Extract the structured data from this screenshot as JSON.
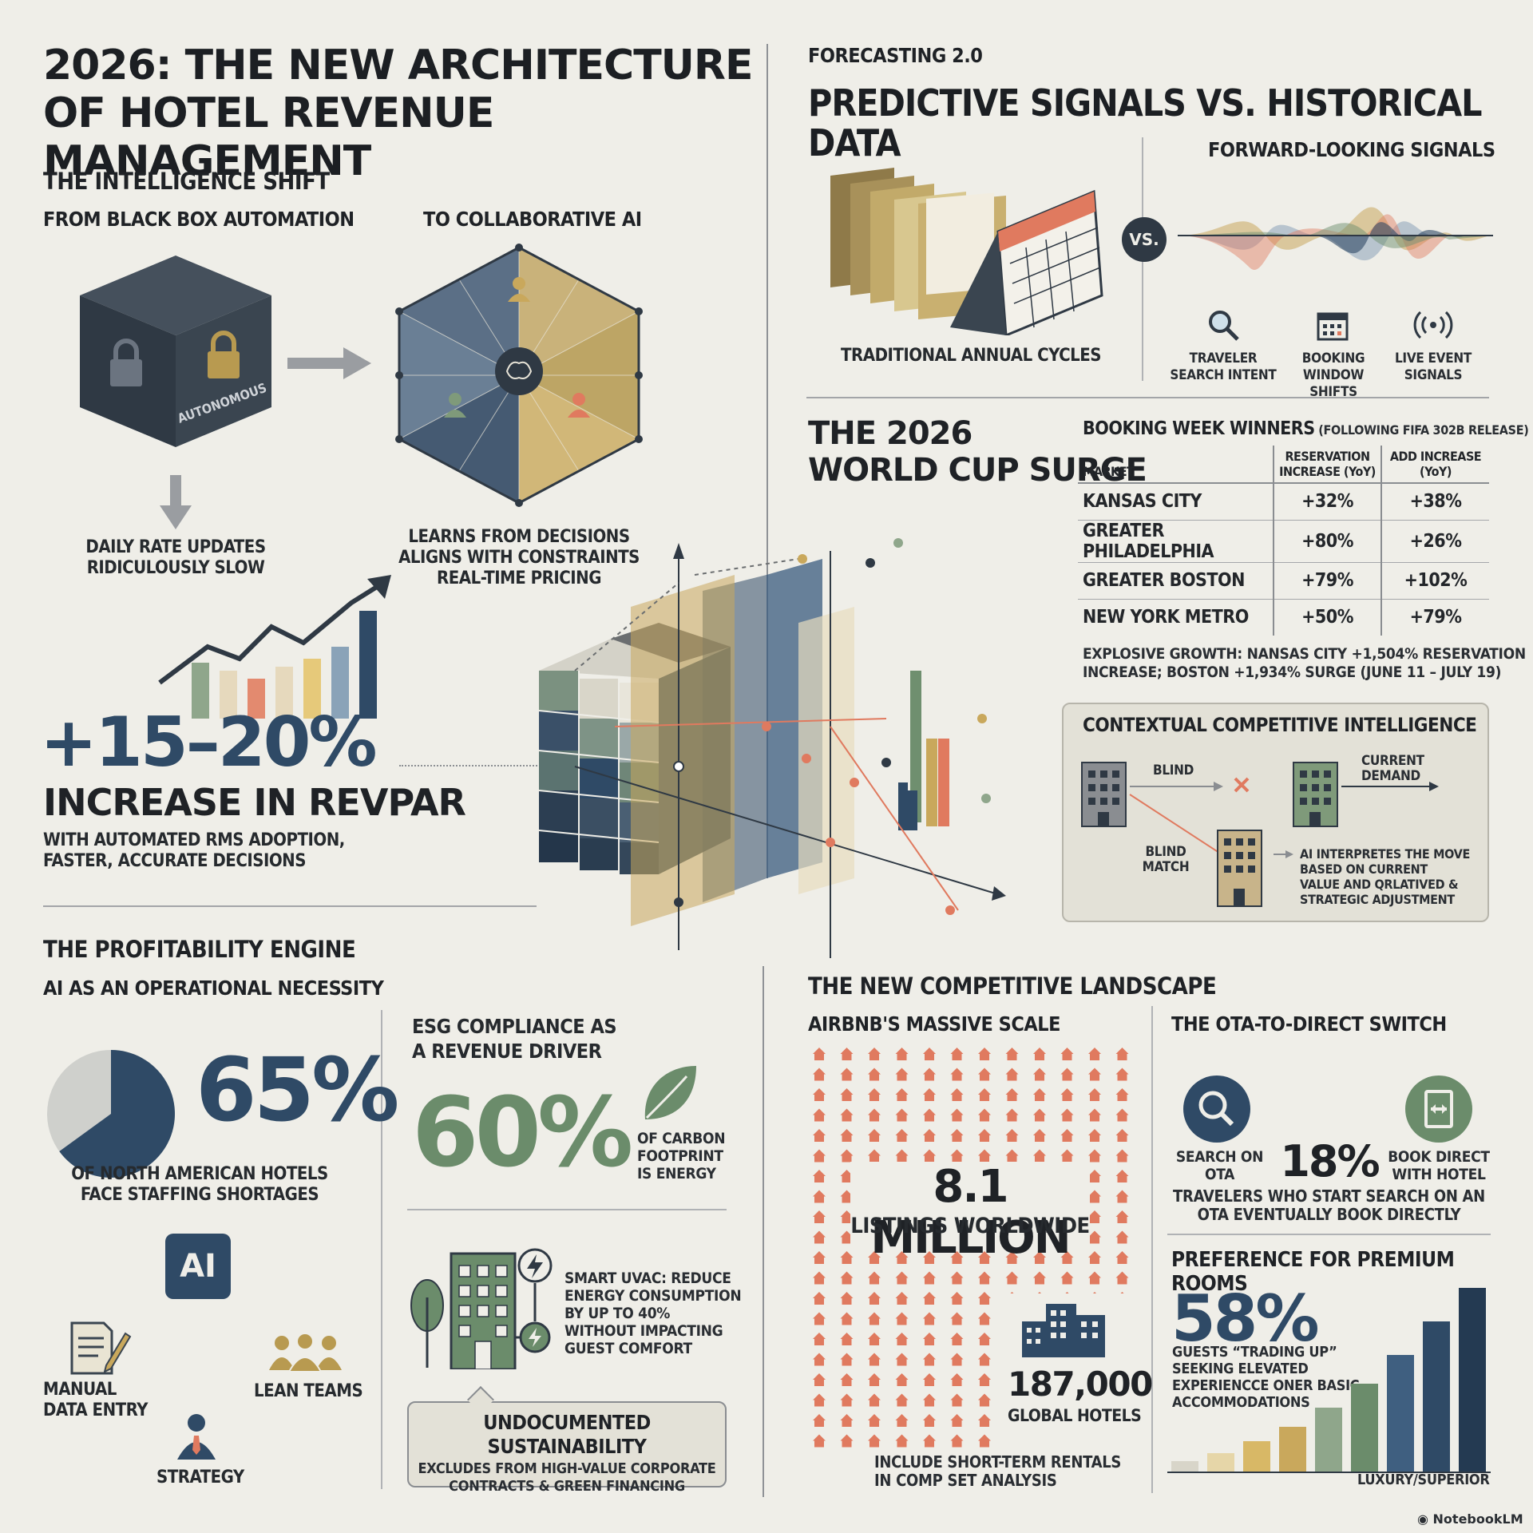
{
  "header": {
    "title_line1": "2026: THE NEW ARCHITECTURE",
    "title_line2": "OF HOTEL REVENUE MANAGEMENT"
  },
  "intelligence_shift": {
    "heading": "THE INTELLIGENCE SHIFT",
    "from_label": "FROM BLACK BOX AUTOMATION",
    "to_label": "TO COLLABORATIVE AI",
    "cube_label": "AUTONOMOUS",
    "black_box_caption_1": "DAILY RATE UPDATES",
    "black_box_caption_2": "RIDICULOUSLY SLOW",
    "collab_caption_1": "LEARNS FROM DECISIONS",
    "collab_caption_2": "ALIGNS WITH CONSTRAINTS",
    "collab_caption_3": "REAL-TIME PRICING"
  },
  "revpar": {
    "value": "+15–20%",
    "label": "INCREASE IN REVPAR",
    "desc_1": "WITH AUTOMATED RMS ADOPTION,",
    "desc_2": "FASTER, ACCURATE DECISIONS"
  },
  "forecasting": {
    "kicker": "FORECASTING 2.0",
    "title": "PREDICTIVE SIGNALS VS. HISTORICAL DATA",
    "traditional_label": "TRADITIONAL ANNUAL CYCLES",
    "vs_label": "VS.",
    "forward_label": "FORWARD-LOOKING SIGNALS",
    "signals": [
      {
        "icon": "magnifier-icon",
        "line1": "TRAVELER",
        "line2": "SEARCH INTENT"
      },
      {
        "icon": "calendar-icon",
        "line1": "BOOKING",
        "line2": "WINDOW SHIFTS"
      },
      {
        "icon": "broadcast-icon",
        "line1": "LIVE EVENT",
        "line2": "SIGNALS"
      }
    ]
  },
  "world_cup": {
    "title_1": "THE 2026",
    "title_2": "WORLD CUP SURGE",
    "table_title": "BOOKING WEEK WINNERS",
    "table_subtitle": "(FOLLOWING FIFA 302B RELEASE)",
    "col_market": "MARKET",
    "col_reservation": "RESERVATION INCREASE (YoY)",
    "col_add": "ADD INCREASE (YoY)",
    "rows": [
      {
        "market": "KANSAS CITY",
        "reservation": "+32%",
        "add": "+38%"
      },
      {
        "market": "GREATER PHILADELPHIA",
        "reservation": "+80%",
        "add": "+26%"
      },
      {
        "market": "GREATER BOSTON",
        "reservation": "+79%",
        "add": "+102%"
      },
      {
        "market": "NEW YORK METRO",
        "reservation": "+50%",
        "add": "+79%"
      }
    ],
    "note_1": "EXPLOSIVE GROWTH: NANSAS CITY +1,504% RESERVATION",
    "note_2": "INCREASE; BOSTON +1,934% SURGE (JUNE 11 – JULY 19)"
  },
  "contextual": {
    "title": "CONTEXTUAL COMPETITIVE INTELLIGENCE",
    "blind": "BLIND",
    "current_demand_1": "CURRENT",
    "current_demand_2": "DEMAND",
    "blind_match_1": "BLIND",
    "blind_match_2": "MATCH",
    "ai_text_1": "AI INTERPRETES THE MOVE",
    "ai_text_2": "BASED ON CURRENT",
    "ai_text_3": "VALUE AND QRLATIVED &",
    "ai_text_4": "STRATEGIC ADJUSTMENT"
  },
  "profitability": {
    "heading": "THE PROFITABILITY ENGINE",
    "subheading": "AI AS AN OPERATIONAL NECESSITY",
    "stat": "65%",
    "stat_value": 65,
    "stat_desc_1": "OF NORTH AMERICAN HOTELS",
    "stat_desc_2": "FACE STAFFING SHORTAGES",
    "ai_badge": "AI",
    "manual_1": "MANUAL",
    "manual_2": "DATA ENTRY",
    "lean": "LEAN TEAMS",
    "strategy": "STRATEGY"
  },
  "esg": {
    "title_1": "ESG COMPLIANCE AS",
    "title_2": "A REVENUE DRIVER",
    "stat": "60%",
    "stat_desc_1": "OF CARBON",
    "stat_desc_2": "FOOTPRINT",
    "stat_desc_3": "IS ENERGY",
    "hvac_1": "SMART UVAC: REDUCE",
    "hvac_2": "ENERGY CONSUMPTION",
    "hvac_3": "BY UP TO 40%",
    "hvac_4": "WITHOUT IMPACTING",
    "hvac_5": "GUEST COMFORT",
    "callout_title": "UNDOCUMENTED SUSTAINABILITY",
    "callout_1": "EXCLUDES FROM HIGH-VALUE CORPORATE",
    "callout_2": "CONTRACTS & GREEN FINANCING"
  },
  "landscape": {
    "heading": "THE NEW COMPETITIVE LANDSCAPE",
    "airbnb_title": "AIRBNB'S MASSIVE SCALE",
    "airbnb_stat": "8.1 MILLION",
    "airbnb_desc": "LISTINGS WORLDWIDE",
    "hotels_stat": "187,000",
    "hotels_desc": "GLOBAL HOTELS",
    "footnote_1": "INCLUDE SHORT-TERM RENTALS",
    "footnote_2": "IN COMP SET ANALYSIS",
    "ota_title": "THE OTA-TO-DIRECT SWITCH",
    "ota_search_1": "SEARCH ON",
    "ota_search_2": "OTA",
    "ota_stat": "18%",
    "ota_book_1": "BOOK DIRECT",
    "ota_book_2": "WITH HOTEL",
    "ota_desc_1": "TRAVELERS WHO START SEARCH ON AN",
    "ota_desc_2": "OTA EVENTUALLY BOOK DIRECTLY",
    "premium_title": "PREFERENCE FOR PREMIUM ROOMS",
    "premium_stat": "58%",
    "premium_desc_1": "GUESTS “TRADING UP”",
    "premium_desc_2": "SEEKING ELEVATED",
    "premium_desc_3": "EXPERIENCCE ONER BASIC",
    "premium_desc_4": "ACCOMMODATIONS",
    "premium_axis": "LUXURY/SUPERIOR"
  },
  "watermark": "NotebookLM",
  "colors": {
    "navy": "#2f4a66",
    "green": "#6f8f6f",
    "gold": "#c9a85c",
    "coral": "#e07a5f",
    "background": "#efeee8"
  }
}
